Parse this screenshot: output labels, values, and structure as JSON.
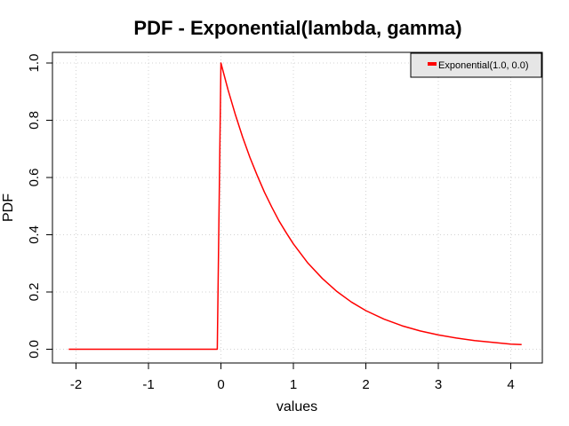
{
  "chart_data": {
    "type": "line",
    "title": "PDF - Exponential(lambda, gamma)",
    "xlabel": "values",
    "ylabel": "PDF",
    "xlim": [
      -2.1,
      4.15
    ],
    "ylim": [
      0,
      1.0
    ],
    "x_ticks": [
      -2,
      -1,
      0,
      1,
      2,
      3,
      4
    ],
    "x_tick_labels": [
      "-2",
      "-1",
      "0",
      "1",
      "2",
      "3",
      "4"
    ],
    "y_ticks": [
      0.0,
      0.2,
      0.4,
      0.6,
      0.8,
      1.0
    ],
    "y_tick_labels": [
      "0.0",
      "0.2",
      "0.4",
      "0.6",
      "0.8",
      "1.0"
    ],
    "grid": true,
    "legend_position": "top-right",
    "series": [
      {
        "name": "Exponential(1.0, 0.0)",
        "color": "#ff0000",
        "x": [
          -2.1,
          -0.05,
          0.0,
          0.1,
          0.2,
          0.3,
          0.4,
          0.5,
          0.6,
          0.7,
          0.8,
          0.9,
          1.0,
          1.2,
          1.4,
          1.6,
          1.8,
          2.0,
          2.25,
          2.5,
          2.75,
          3.0,
          3.25,
          3.5,
          3.75,
          4.0,
          4.15
        ],
        "y": [
          0.0,
          0.0,
          1.0,
          0.905,
          0.819,
          0.741,
          0.67,
          0.607,
          0.549,
          0.497,
          0.449,
          0.407,
          0.368,
          0.301,
          0.247,
          0.202,
          0.165,
          0.135,
          0.105,
          0.082,
          0.064,
          0.05,
          0.039,
          0.03,
          0.024,
          0.018,
          0.016
        ]
      }
    ]
  }
}
